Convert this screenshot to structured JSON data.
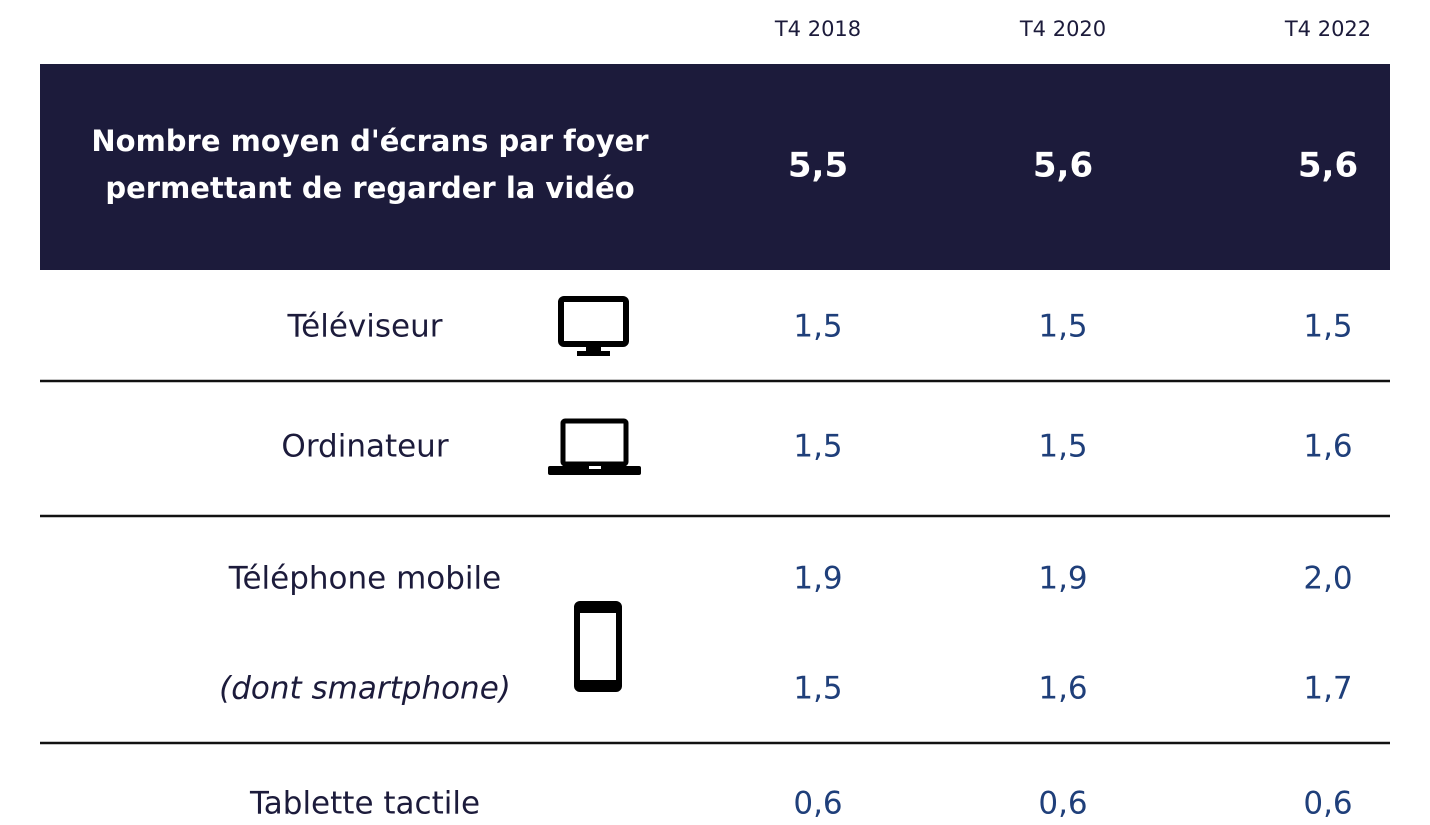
{
  "columns": [
    "T4 2018",
    "T4 2020",
    "T4 2022"
  ],
  "summary": {
    "label_lines": [
      "Nombre moyen d'écrans par foyer",
      "permettant de regarder la vidéo"
    ],
    "values": [
      "5,5",
      "5,6",
      "5,6"
    ]
  },
  "rows": [
    {
      "label": "Téléviseur",
      "values": [
        "1,5",
        "1,5",
        "1,5"
      ]
    },
    {
      "label": "Ordinateur",
      "values": [
        "1,5",
        "1,5",
        "1,6"
      ]
    },
    {
      "label": "Téléphone mobile",
      "values": [
        "1,9",
        "1,9",
        "2,0"
      ]
    },
    {
      "label": "(dont smartphone)",
      "values": [
        "1,5",
        "1,6",
        "1,7"
      ]
    },
    {
      "label": "Tablette tactile",
      "values": [
        "0,6",
        "0,6",
        "0,6"
      ]
    }
  ]
}
